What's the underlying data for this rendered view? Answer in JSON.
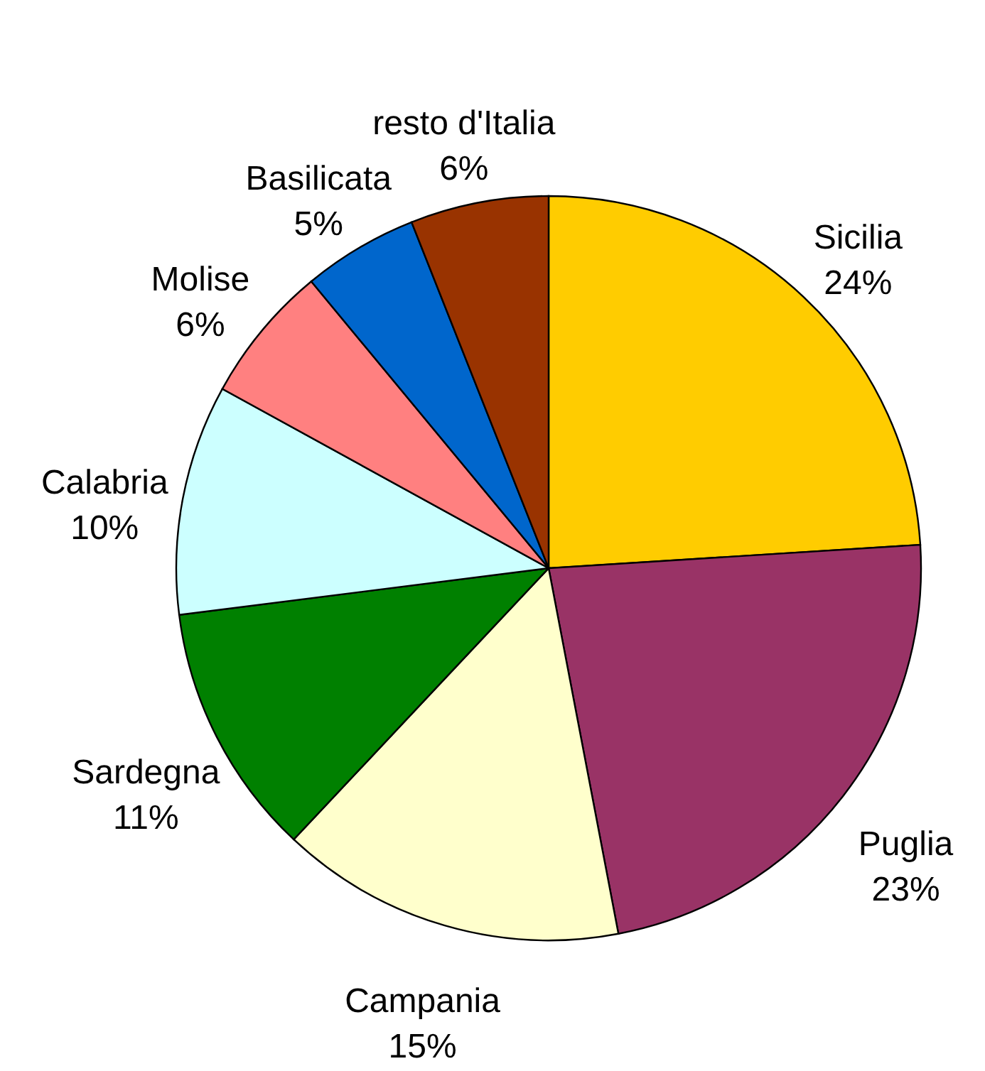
{
  "chart_data": {
    "type": "pie",
    "categories": [
      "Sicilia",
      "Puglia",
      "Campania",
      "Sardegna",
      "Calabria",
      "Molise",
      "Basilicata",
      "resto d'Italia"
    ],
    "values": [
      24,
      23,
      15,
      11,
      10,
      6,
      5,
      6
    ],
    "colors": [
      "#ffcc00",
      "#993366",
      "#ffffcc",
      "#008000",
      "#ccffff",
      "#ff8080",
      "#0066cc",
      "#993300"
    ],
    "value_labels": [
      "24%",
      "23%",
      "15%",
      "11%",
      "10%",
      "6%",
      "5%",
      "6%"
    ]
  }
}
